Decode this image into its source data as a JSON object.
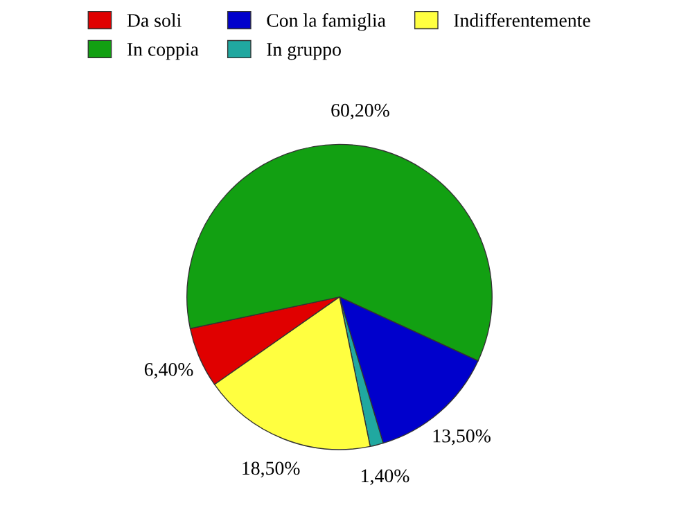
{
  "chart_data": {
    "type": "pie",
    "categories": [
      "Da soli",
      "In coppia",
      "Con la famiglia",
      "In gruppo",
      "Indifferentemente"
    ],
    "values": [
      6.4,
      60.2,
      13.5,
      1.4,
      18.5
    ],
    "colors": [
      "#e00000",
      "#12a012",
      "#0000cc",
      "#20a8a0",
      "#ffff40"
    ],
    "value_labels": [
      "6,40%",
      "60,20%",
      "13,50%",
      "1,40%",
      "18,50%"
    ],
    "legend": "top"
  }
}
